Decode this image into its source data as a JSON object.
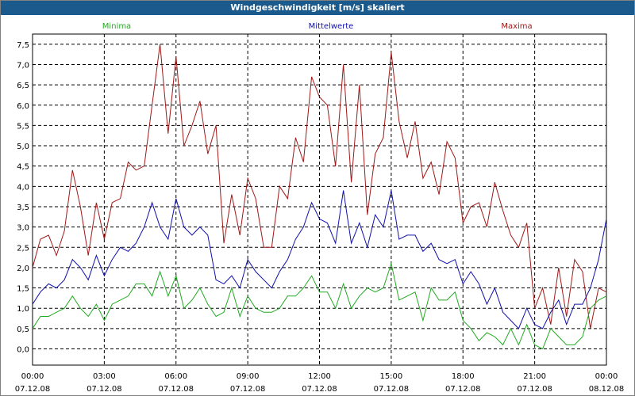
{
  "window": {
    "title": "Windgeschwindigkeit [m/s] skaliert"
  },
  "colors": {
    "title_bg": "#1a5a8c",
    "minima": "#22aa22",
    "mittelwerte": "#1010aa",
    "maxima": "#a01818",
    "grid": "#000000"
  },
  "chart_data": {
    "type": "line",
    "title": "Windgeschwindigkeit [m/s] skaliert",
    "xlabel": "",
    "ylabel": "",
    "ylim": [
      -0.4,
      7.75
    ],
    "xlim": [
      0,
      24
    ],
    "grid": true,
    "legend_placement": "top",
    "y_ticks": [
      "7,5",
      "7,0",
      "6,5",
      "6,0",
      "5,5",
      "5,0",
      "4,5",
      "4,0",
      "3,5",
      "3,0",
      "2,5",
      "2,0",
      "1,5",
      "1,0",
      "0,5",
      "0,0"
    ],
    "x_ticks": [
      {
        "time": "00:00",
        "date": "07.12.08"
      },
      {
        "time": "03:00",
        "date": "07.12.08"
      },
      {
        "time": "06:00",
        "date": "07.12.08"
      },
      {
        "time": "09:00",
        "date": "07.12.08"
      },
      {
        "time": "12:00",
        "date": "07.12.08"
      },
      {
        "time": "15:00",
        "date": "07.12.08"
      },
      {
        "time": "18:00",
        "date": "07.12.08"
      },
      {
        "time": "21:00",
        "date": "07.12.08"
      },
      {
        "time": "00:00",
        "date": "08.12.08"
      }
    ],
    "x": [
      0,
      0.33,
      0.67,
      1,
      1.33,
      1.67,
      2,
      2.33,
      2.67,
      3,
      3.33,
      3.67,
      4,
      4.33,
      4.67,
      5,
      5.33,
      5.67,
      6,
      6.33,
      6.67,
      7,
      7.33,
      7.67,
      8,
      8.33,
      8.67,
      9,
      9.33,
      9.67,
      10,
      10.33,
      10.67,
      11,
      11.33,
      11.67,
      12,
      12.33,
      12.67,
      13,
      13.33,
      13.67,
      14,
      14.33,
      14.67,
      15,
      15.33,
      15.67,
      16,
      16.33,
      16.67,
      17,
      17.33,
      17.67,
      18,
      18.33,
      18.67,
      19,
      19.33,
      19.67,
      20,
      20.33,
      20.67,
      21,
      21.33,
      21.67,
      22,
      22.33,
      22.67,
      23,
      23.33,
      23.67,
      24
    ],
    "series": [
      {
        "name": "Maxima",
        "values": [
          2.0,
          2.7,
          2.8,
          2.3,
          2.9,
          4.4,
          3.5,
          2.3,
          3.6,
          2.7,
          3.6,
          3.7,
          4.6,
          4.4,
          4.5,
          6.0,
          7.5,
          5.3,
          7.2,
          5.0,
          5.5,
          6.1,
          4.8,
          5.5,
          2.6,
          3.8,
          2.8,
          4.2,
          3.7,
          2.5,
          2.5,
          4.0,
          3.7,
          5.2,
          4.6,
          6.7,
          6.2,
          6.0,
          4.5,
          7.0,
          4.1,
          6.5,
          3.3,
          4.8,
          5.2,
          7.3,
          5.6,
          4.7,
          5.6,
          4.2,
          4.6,
          3.8,
          5.1,
          4.7,
          3.1,
          3.5,
          3.6,
          3.0,
          4.1,
          3.4,
          2.8,
          2.5,
          3.1,
          1.0,
          1.5,
          0.6,
          2.0,
          0.8,
          2.2,
          1.9,
          0.5,
          1.5,
          1.4
        ]
      },
      {
        "name": "Mittelwerte",
        "values": [
          1.1,
          1.4,
          1.6,
          1.5,
          1.7,
          2.2,
          2.0,
          1.7,
          2.3,
          1.8,
          2.2,
          2.5,
          2.4,
          2.6,
          3.0,
          3.6,
          3.0,
          2.7,
          3.7,
          3.0,
          2.8,
          3.0,
          2.8,
          1.7,
          1.6,
          1.8,
          1.5,
          2.2,
          1.9,
          1.7,
          1.5,
          1.9,
          2.2,
          2.7,
          3.0,
          3.6,
          3.2,
          3.1,
          2.6,
          3.9,
          2.6,
          3.1,
          2.5,
          3.3,
          3.0,
          3.9,
          2.7,
          2.8,
          2.8,
          2.4,
          2.6,
          2.2,
          2.1,
          2.2,
          1.6,
          1.9,
          1.6,
          1.1,
          1.5,
          0.9,
          0.7,
          0.5,
          1.0,
          0.6,
          0.5,
          0.9,
          1.2,
          0.6,
          1.1,
          1.1,
          1.5,
          2.2,
          3.2
        ]
      },
      {
        "name": "Minima",
        "values": [
          0.5,
          0.8,
          0.8,
          0.9,
          1.0,
          1.3,
          1.0,
          0.8,
          1.1,
          0.7,
          1.1,
          1.2,
          1.3,
          1.6,
          1.6,
          1.3,
          1.9,
          1.3,
          1.8,
          1.0,
          1.2,
          1.5,
          1.1,
          0.8,
          0.9,
          1.5,
          0.8,
          1.3,
          1.0,
          0.9,
          0.9,
          1.0,
          1.3,
          1.3,
          1.5,
          1.8,
          1.4,
          1.4,
          1.0,
          1.6,
          1.0,
          1.3,
          1.5,
          1.4,
          1.5,
          2.1,
          1.2,
          1.3,
          1.4,
          0.7,
          1.5,
          1.2,
          1.2,
          1.4,
          0.7,
          0.5,
          0.2,
          0.4,
          0.3,
          0.1,
          0.5,
          0.1,
          0.6,
          0.1,
          0.0,
          0.5,
          0.3,
          0.1,
          0.1,
          0.3,
          1.0,
          1.2,
          1.3
        ]
      }
    ]
  }
}
